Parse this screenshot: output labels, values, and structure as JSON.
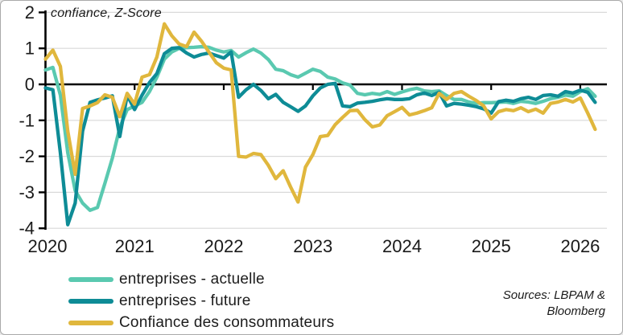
{
  "title": "confiance, Z-Score",
  "sources": {
    "line1": "Sources: LBPAM &",
    "line2": "Bloomberg"
  },
  "colors": {
    "grid": "#d9d9d9",
    "axis": "#000000",
    "text": "#1a1a1a",
    "series_actuelle": "#5ac9b0",
    "series_future": "#0e8c96",
    "series_consommateurs": "#e0b73d"
  },
  "chart_data": {
    "type": "line",
    "title": "confiance, Z-Score",
    "ylabel": "Z-Score",
    "xlabel": "",
    "grid": true,
    "legend_position": "bottom-left",
    "ylim": [
      -4,
      2
    ],
    "y_ticks": [
      2,
      1,
      0,
      -1,
      -2,
      -3,
      -4
    ],
    "x_tick_labels": [
      "2020",
      "2021",
      "2022",
      "2023",
      "2024",
      "2025",
      "2026"
    ],
    "x_unit": "month",
    "x_start": "2020-01",
    "x_end": "2026-03",
    "series": [
      {
        "name": "entreprises - actuelle",
        "color": "#5ac9b0",
        "values": [
          0.4,
          0.47,
          -0.3,
          -1.9,
          -2.95,
          -3.3,
          -3.5,
          -3.42,
          -2.75,
          -2.05,
          -1.2,
          -0.7,
          -0.6,
          -0.5,
          -0.2,
          0.2,
          0.7,
          0.9,
          1.0,
          1.02,
          1.03,
          1.05,
          1.03,
          0.95,
          0.9,
          0.94,
          0.76,
          0.88,
          0.98,
          0.87,
          0.69,
          0.42,
          0.38,
          0.27,
          0.2,
          0.31,
          0.42,
          0.36,
          0.2,
          0.15,
          0.04,
          -0.02,
          -0.25,
          -0.29,
          -0.25,
          -0.28,
          -0.2,
          -0.28,
          -0.21,
          -0.15,
          -0.11,
          -0.18,
          -0.2,
          -0.18,
          -0.31,
          -0.42,
          -0.42,
          -0.49,
          -0.53,
          -0.51,
          -0.51,
          -0.5,
          -0.49,
          -0.53,
          -0.47,
          -0.49,
          -0.53,
          -0.47,
          -0.4,
          -0.36,
          -0.3,
          -0.33,
          -0.2,
          -0.12,
          -0.33
        ]
      },
      {
        "name": "entreprises - future",
        "color": "#0e8c96",
        "values": [
          -0.1,
          -0.15,
          -1.9,
          -3.9,
          -3.3,
          -1.3,
          -0.5,
          -0.43,
          -0.38,
          -0.32,
          -1.45,
          -0.3,
          -0.7,
          -0.3,
          0.05,
          0.3,
          0.85,
          1.0,
          1.02,
          0.87,
          0.76,
          0.83,
          0.87,
          0.8,
          0.73,
          0.9,
          -0.36,
          -0.15,
          0.0,
          -0.17,
          -0.4,
          -0.28,
          -0.5,
          -0.62,
          -0.75,
          -0.6,
          -0.32,
          -0.1,
          0.0,
          0.03,
          -0.6,
          -0.62,
          -0.52,
          -0.5,
          -0.47,
          -0.43,
          -0.4,
          -0.42,
          -0.42,
          -0.4,
          -0.29,
          -0.24,
          -0.31,
          -0.22,
          -0.6,
          -0.53,
          -0.55,
          -0.58,
          -0.62,
          -0.68,
          -0.8,
          -0.48,
          -0.44,
          -0.47,
          -0.4,
          -0.36,
          -0.42,
          -0.31,
          -0.29,
          -0.33,
          -0.2,
          -0.24,
          -0.16,
          -0.22,
          -0.5
        ]
      },
      {
        "name": "Confiance des consommateurs",
        "color": "#e0b73d",
        "values": [
          0.7,
          0.95,
          0.5,
          -1.3,
          -2.5,
          -0.67,
          -0.6,
          -0.51,
          -0.29,
          -0.36,
          -0.9,
          -0.25,
          -0.55,
          0.2,
          0.27,
          0.76,
          1.68,
          1.35,
          1.12,
          1.05,
          1.45,
          1.2,
          0.9,
          0.6,
          0.45,
          0.4,
          -2.0,
          -2.02,
          -1.92,
          -1.95,
          -2.25,
          -2.62,
          -2.4,
          -2.85,
          -3.27,
          -2.3,
          -1.95,
          -1.45,
          -1.42,
          -1.12,
          -0.92,
          -0.73,
          -0.72,
          -0.98,
          -1.18,
          -1.13,
          -0.87,
          -0.76,
          -0.64,
          -0.85,
          -0.8,
          -0.73,
          -0.65,
          -0.25,
          -0.42,
          -0.25,
          -0.2,
          -0.33,
          -0.45,
          -0.6,
          -0.96,
          -0.76,
          -0.7,
          -0.73,
          -0.65,
          -0.76,
          -0.69,
          -0.8,
          -0.53,
          -0.49,
          -0.42,
          -0.49,
          -0.38,
          -0.8,
          -1.25
        ]
      }
    ]
  }
}
